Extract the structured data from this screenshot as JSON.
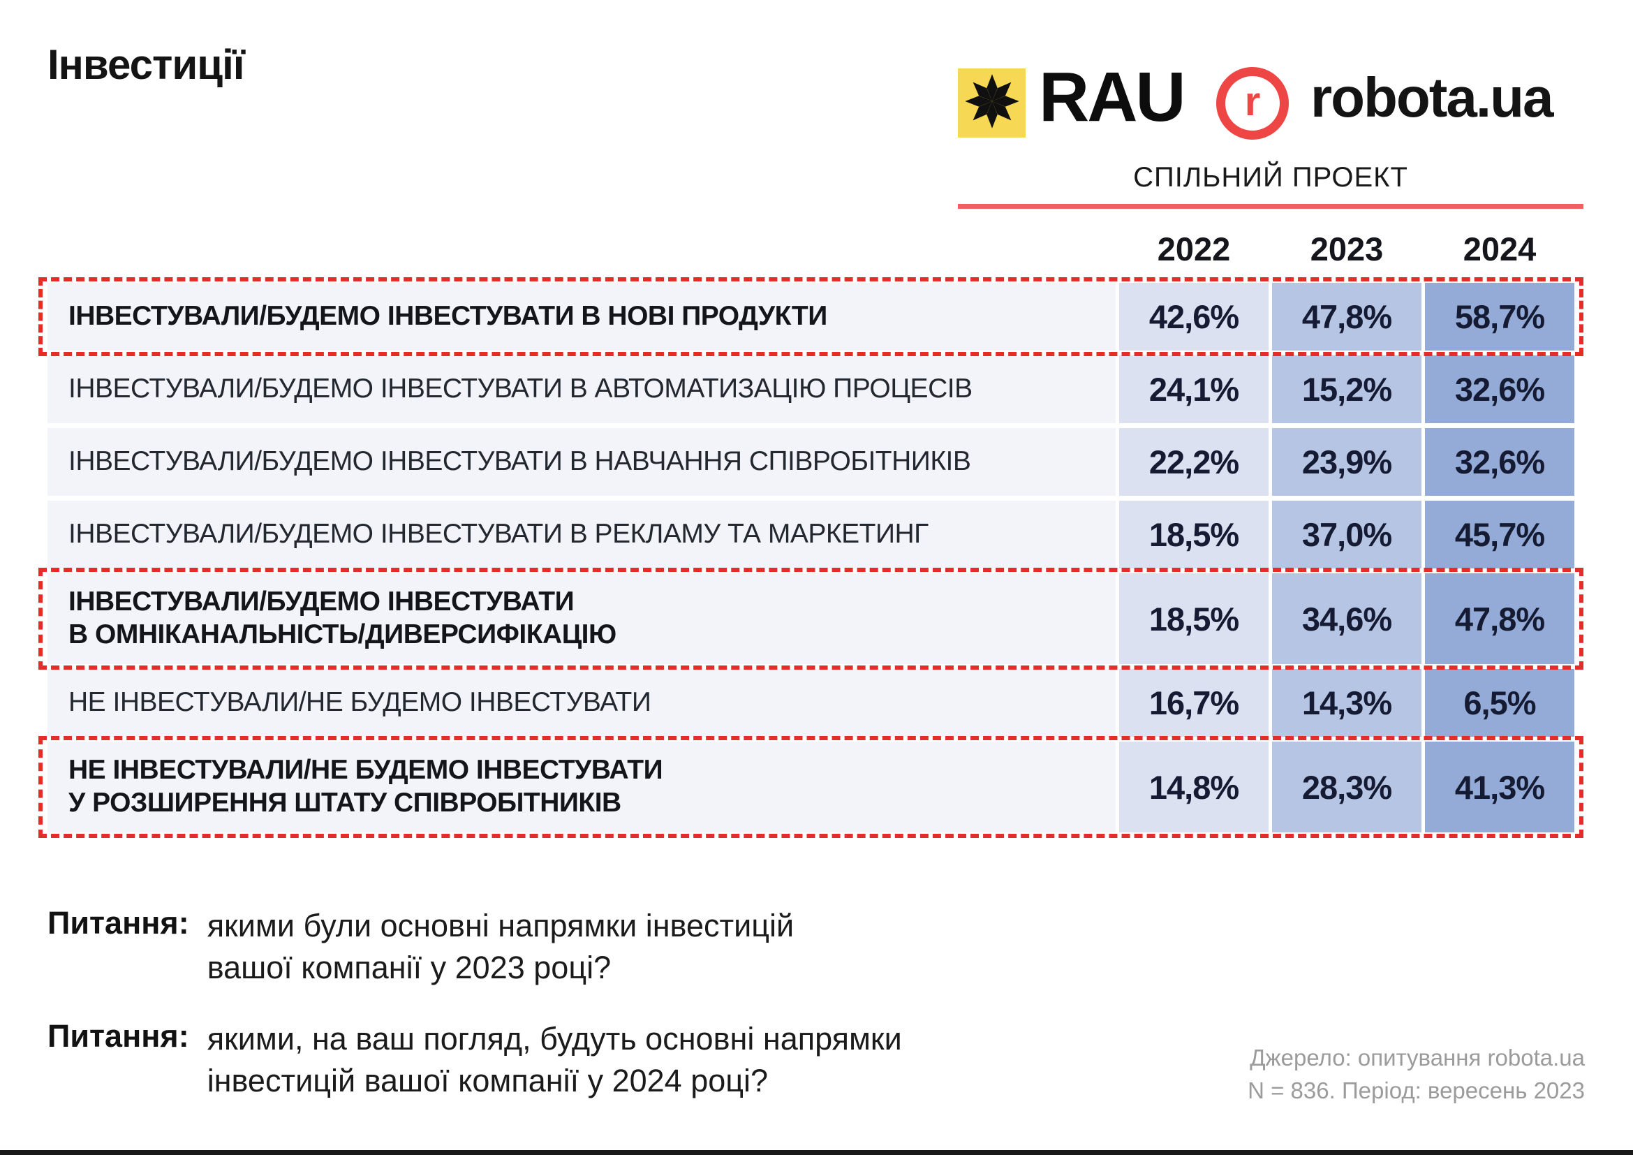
{
  "page": {
    "title": "Інвестиції",
    "subtitle": "СПІЛЬНИЙ ПРОЕКТ"
  },
  "logos": {
    "rau_text": "RAU",
    "robota_r": "r",
    "robota_text": "robota.ua"
  },
  "chart_data": {
    "type": "table",
    "title": "Інвестиції",
    "columns": [
      "2022",
      "2023",
      "2024"
    ],
    "rows": [
      {
        "label": "ІНВЕСТУВАЛИ/БУДЕМО ІНВЕСТУВАТИ В НОВІ ПРОДУКТИ",
        "values": [
          42.6,
          47.8,
          58.7
        ],
        "display": [
          "42,6%",
          "47,8%",
          "58,7%"
        ],
        "highlighted": true,
        "bold": true,
        "tall": false
      },
      {
        "label": "ІНВЕСТУВАЛИ/БУДЕМО ІНВЕСТУВАТИ В АВТОМАТИЗАЦІЮ ПРОЦЕСІВ",
        "values": [
          24.1,
          15.2,
          32.6
        ],
        "display": [
          "24,1%",
          "15,2%",
          "32,6%"
        ],
        "highlighted": false,
        "bold": false,
        "tall": false
      },
      {
        "label": "ІНВЕСТУВАЛИ/БУДЕМО ІНВЕСТУВАТИ В НАВЧАННЯ СПІВРОБІТНИКІВ",
        "values": [
          22.2,
          23.9,
          32.6
        ],
        "display": [
          "22,2%",
          "23,9%",
          "32,6%"
        ],
        "highlighted": false,
        "bold": false,
        "tall": false
      },
      {
        "label": "ІНВЕСТУВАЛИ/БУДЕМО ІНВЕСТУВАТИ В РЕКЛАМУ ТА МАРКЕТИНГ",
        "values": [
          18.5,
          37.0,
          45.7
        ],
        "display": [
          "18,5%",
          "37,0%",
          "45,7%"
        ],
        "highlighted": false,
        "bold": false,
        "tall": false
      },
      {
        "label": "ІНВЕСТУВАЛИ/БУДЕМО ІНВЕСТУВАТИ\nВ ОМНІКАНАЛЬНІСТЬ/ДИВЕРСИФІКАЦІЮ",
        "values": [
          18.5,
          34.6,
          47.8
        ],
        "display": [
          "18,5%",
          "34,6%",
          "47,8%"
        ],
        "highlighted": true,
        "bold": true,
        "tall": true
      },
      {
        "label": "НЕ ІНВЕСТУВАЛИ/НЕ БУДЕМО ІНВЕСТУВАТИ",
        "values": [
          16.7,
          14.3,
          6.5
        ],
        "display": [
          "16,7%",
          "14,3%",
          "6,5%"
        ],
        "highlighted": false,
        "bold": false,
        "tall": false
      },
      {
        "label": "НЕ ІНВЕСТУВАЛИ/НЕ БУДЕМО ІНВЕСТУВАТИ\nУ РОЗШИРЕННЯ ШТАТУ СПІВРОБІТНИКІВ",
        "values": [
          14.8,
          28.3,
          41.3
        ],
        "display": [
          "14,8%",
          "28,3%",
          "41,3%"
        ],
        "highlighted": true,
        "bold": true,
        "tall": true
      }
    ]
  },
  "questions": [
    {
      "prefix": "Питання:",
      "text": "якими були основні напрямки інвестицій\nвашої компанії у 2023 році?"
    },
    {
      "prefix": "Питання:",
      "text": "якими, на ваш погляд, будуть основні напрямки\nінвестицій вашої компанії у 2024 році?"
    }
  ],
  "source": {
    "line1": "Джерело: опитування robota.ua",
    "line2": "N = 836. Період: вересень 2023"
  },
  "colors": {
    "accent_red": "#ee4545",
    "line_red": "#f15f5f",
    "dash_red": "#e42d28",
    "rau_yellow": "#f7d854",
    "row_bg": "#f2f4f9",
    "col_2022": "#dbe1f1",
    "col_2023": "#b7c5e4",
    "col_2024": "#94aad7",
    "value_text": "#151b32",
    "source_gray": "#9b9b9b"
  }
}
